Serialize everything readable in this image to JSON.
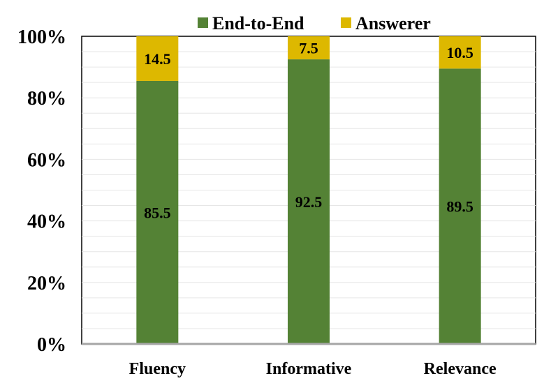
{
  "chart_data": {
    "type": "bar",
    "stacked": true,
    "categories": [
      "Fluency",
      "Informative",
      "Relevance"
    ],
    "series": [
      {
        "name": "End-to-End",
        "values": [
          85.5,
          92.5,
          89.5
        ],
        "color": "#548235",
        "labels": [
          "85.5",
          "92.5",
          "89.5"
        ]
      },
      {
        "name": "Answerer",
        "values": [
          14.5,
          7.5,
          10.5
        ],
        "color": "#DDB800",
        "labels": [
          "14.5",
          "7.5",
          "10.5"
        ]
      }
    ],
    "y_ticks": [
      "0%",
      "20%",
      "40%",
      "60%",
      "80%",
      "100%"
    ],
    "ylim": [
      0,
      100
    ],
    "grid": true,
    "legend_position": "top"
  }
}
